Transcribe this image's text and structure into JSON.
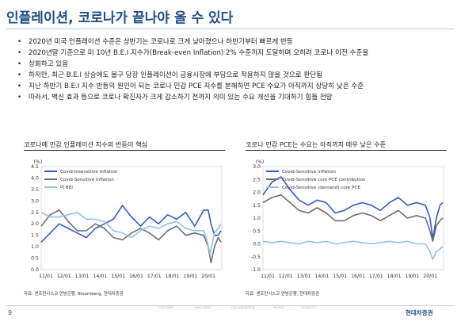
{
  "title": "인플레이션, 코로나가 끝나야 올 수 있다",
  "bullets": [
    "2020년 미국 인플레이션 수준은 상반기는 코로나로 크게 낮아졌으나 하반기부터 빠르게 반등",
    "2020년말 기준으로 미 10년 B.E.I 지수가(Break-even Inflation) 2% 수준까지 도달하며 오히려 코로나 이전 수준을",
    "상회하고 있음",
    "하지만, 최근 B.E.I 상승에도 불구 당장 인플레이션이 금융시장에 부담으로 작용하지 않을 것으로 판단됨",
    "지난 하반기 B.E.I 지수 반등의 원인이 되는 코로나 민감 PCE 지수를 분해하면 PCE 수요가 아직까지 상당히 낮은 수준",
    "따라서, 백신 효과 등으로 코로나 확진자가 크게 감소하기 전까지 의미 있는 수요 개선을 기대하기 힘들 전망"
  ],
  "footer": {
    "page": "9",
    "brand": "현대차증권",
    "deco_labels": [
      "CUSTOMER",
      "CHALLENGE",
      "COLLABORATION",
      "PEOPLE",
      "GLOBALITY"
    ]
  },
  "chart_data": [
    {
      "type": "line",
      "title": "코로나에 민감 인플레이션 지수의 반등이 핵심",
      "yunit": "(%)",
      "ylim": [
        0.0,
        4.5
      ],
      "yticks": [
        0.0,
        0.5,
        1.0,
        1.5,
        2.0,
        2.5,
        3.0,
        3.5,
        4.0,
        4.5
      ],
      "xlim": [
        2011.0,
        2021.0
      ],
      "xticks": [
        "11/01",
        "12/01",
        "13/01",
        "14/01",
        "15/01",
        "16/01",
        "17/01",
        "18/01",
        "19/01",
        "20/01"
      ],
      "legend": "top",
      "source": "자료: 샌프란시스코 연방은행, Bloomberg, 현대차증권",
      "series": [
        {
          "name": "Covid-Insensitive Inflation",
          "color": "#2f5bd8",
          "x": [
            2011.0,
            2011.5,
            2012.0,
            2012.5,
            2013.0,
            2013.5,
            2014.0,
            2014.5,
            2015.0,
            2015.5,
            2016.0,
            2016.5,
            2017.0,
            2017.5,
            2018.0,
            2018.5,
            2019.0,
            2019.5,
            2020.0,
            2020.25,
            2020.4,
            2020.6,
            2020.8,
            2020.95
          ],
          "y": [
            1.2,
            1.6,
            2.0,
            1.8,
            1.6,
            1.4,
            1.8,
            2.0,
            2.2,
            2.8,
            2.3,
            1.9,
            2.3,
            2.0,
            2.4,
            2.2,
            2.5,
            1.9,
            2.6,
            2.6,
            2.0,
            1.5,
            1.5,
            1.7
          ]
        },
        {
          "name": "Covid-Sensitive Inflation",
          "color": "#707070",
          "x": [
            2011.0,
            2011.5,
            2012.0,
            2012.5,
            2013.0,
            2013.5,
            2014.0,
            2014.5,
            2015.0,
            2015.5,
            2016.0,
            2016.5,
            2017.0,
            2017.5,
            2018.0,
            2018.5,
            2019.0,
            2019.5,
            2020.0,
            2020.25,
            2020.4,
            2020.6,
            2020.8,
            2020.95
          ],
          "y": [
            1.9,
            2.4,
            2.6,
            2.1,
            1.7,
            1.7,
            2.0,
            1.8,
            1.4,
            1.3,
            1.6,
            1.8,
            1.6,
            1.3,
            1.7,
            1.9,
            1.5,
            1.6,
            1.5,
            1.0,
            0.3,
            1.0,
            1.4,
            1.2
          ]
        },
        {
          "name": "미 BEI",
          "color": "#8ec3ee",
          "x": [
            2011.0,
            2011.5,
            2012.0,
            2012.5,
            2013.0,
            2013.5,
            2014.0,
            2014.5,
            2015.0,
            2015.5,
            2016.0,
            2016.5,
            2017.0,
            2017.5,
            2018.0,
            2018.5,
            2019.0,
            2019.5,
            2020.0,
            2020.2,
            2020.35,
            2020.6,
            2020.8,
            2020.95
          ],
          "y": [
            2.5,
            2.3,
            2.3,
            2.4,
            2.5,
            2.2,
            2.2,
            2.1,
            1.7,
            1.6,
            1.4,
            1.7,
            1.9,
            1.8,
            2.0,
            2.1,
            1.8,
            1.7,
            1.7,
            1.2,
            0.7,
            1.6,
            1.8,
            2.0
          ]
        }
      ]
    },
    {
      "type": "line",
      "title": "코로나 민감 PCE는 수요는 아직까지 매우 낮은 수준",
      "yunit": "(%)",
      "ylim": [
        -1.0,
        3.0
      ],
      "yticks": [
        -1.0,
        -0.5,
        0.0,
        0.5,
        1.0,
        1.5,
        2.0,
        2.5,
        3.0
      ],
      "xlim": [
        2011.0,
        2021.0
      ],
      "xticks": [
        "11/01",
        "12/01",
        "13/01",
        "14/01",
        "15/01",
        "16/01",
        "17/01",
        "18/01",
        "19/01",
        "20/01"
      ],
      "legend": "top",
      "source": "자료: 샌프란시스코 연방은행, 현대차증권",
      "series": [
        {
          "name": "Covid-Sensitive Inflation",
          "color": "#2f5bd8",
          "x": [
            2011.0,
            2011.5,
            2012.0,
            2012.5,
            2013.0,
            2013.5,
            2014.0,
            2014.5,
            2015.0,
            2015.5,
            2016.0,
            2016.5,
            2017.0,
            2017.5,
            2018.0,
            2018.5,
            2019.0,
            2019.5,
            2020.0,
            2020.25,
            2020.4,
            2020.6,
            2020.8,
            2020.95
          ],
          "y": [
            1.9,
            2.4,
            2.6,
            2.1,
            1.7,
            1.5,
            1.7,
            1.6,
            1.2,
            1.3,
            1.5,
            1.6,
            1.5,
            1.3,
            1.6,
            1.8,
            1.5,
            1.6,
            1.5,
            1.0,
            0.2,
            1.0,
            1.5,
            1.6
          ]
        },
        {
          "name": "Covid-Sensitive core PCE contribution",
          "color": "#6e6e6e",
          "x": [
            2011.0,
            2011.5,
            2012.0,
            2012.5,
            2013.0,
            2013.5,
            2014.0,
            2014.5,
            2015.0,
            2015.5,
            2016.0,
            2016.5,
            2017.0,
            2017.5,
            2018.0,
            2018.5,
            2019.0,
            2019.5,
            2020.0,
            2020.25,
            2020.4,
            2020.6,
            2020.8,
            2020.95
          ],
          "y": [
            1.6,
            1.8,
            1.9,
            1.6,
            1.3,
            1.2,
            1.4,
            1.2,
            0.9,
            0.9,
            1.1,
            1.2,
            1.1,
            0.9,
            1.1,
            1.3,
            1.0,
            1.1,
            1.0,
            0.5,
            0.1,
            0.7,
            0.9,
            1.0
          ]
        },
        {
          "name": "Covid-Sensitive (demand) core PCE",
          "color": "#8ec3ee",
          "x": [
            2011.0,
            2011.5,
            2012.0,
            2012.5,
            2013.0,
            2013.5,
            2014.0,
            2014.5,
            2015.0,
            2015.5,
            2016.0,
            2016.5,
            2017.0,
            2017.5,
            2018.0,
            2018.5,
            2019.0,
            2019.5,
            2020.0,
            2020.25,
            2020.4,
            2020.6,
            2020.8,
            2020.95
          ],
          "y": [
            0.1,
            0.05,
            0.1,
            0.05,
            0.0,
            0.1,
            0.05,
            0.1,
            0.0,
            0.05,
            0.1,
            0.05,
            0.0,
            0.05,
            0.1,
            0.05,
            0.1,
            0.0,
            0.0,
            -0.3,
            -0.6,
            -0.3,
            -0.2,
            -0.1
          ]
        }
      ]
    }
  ]
}
